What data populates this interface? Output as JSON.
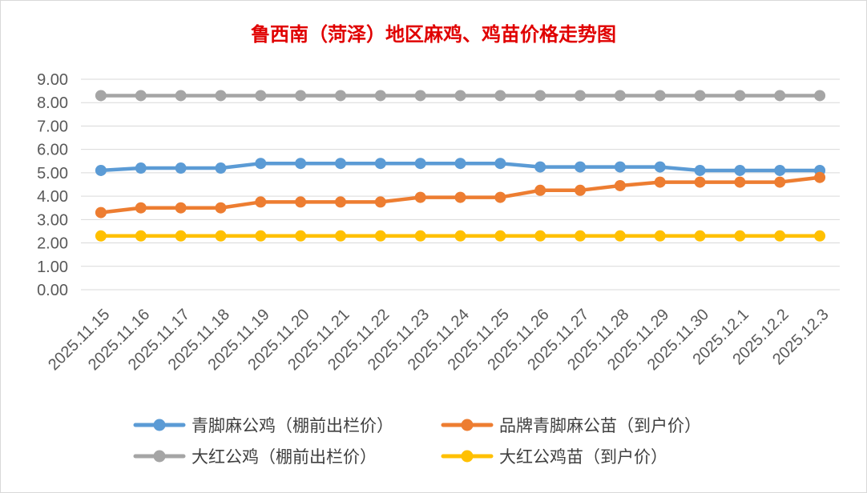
{
  "chart_data": {
    "type": "line",
    "title": "鲁西南（菏泽）地区麻鸡、鸡苗价格走势图",
    "xlabel": "",
    "ylabel": "",
    "ylim": [
      0,
      9
    ],
    "yticks": [
      "0.00",
      "1.00",
      "2.00",
      "3.00",
      "4.00",
      "5.00",
      "6.00",
      "7.00",
      "8.00",
      "9.00"
    ],
    "grid": true,
    "legend_position": "bottom",
    "x": [
      "2025.11.15",
      "2025.11.16",
      "2025.11.17",
      "2025.11.18",
      "2025.11.19",
      "2025.11.20",
      "2025.11.21",
      "2025.11.22",
      "2025.11.23",
      "2025.11.24",
      "2025.11.25",
      "2025.11.26",
      "2025.11.27",
      "2025.11.28",
      "2025.11.29",
      "2025.11.30",
      "2025.12.1",
      "2025.12.2",
      "2025.12.3"
    ],
    "series": [
      {
        "name": "青脚麻公鸡（棚前出栏价）",
        "color": "#5b9bd5",
        "values": [
          5.1,
          5.2,
          5.2,
          5.2,
          5.4,
          5.4,
          5.4,
          5.4,
          5.4,
          5.4,
          5.4,
          5.25,
          5.25,
          5.25,
          5.25,
          5.1,
          5.1,
          5.1,
          5.1
        ]
      },
      {
        "name": "品牌青脚麻公苗（到户价）",
        "color": "#ed7d31",
        "values": [
          3.3,
          3.5,
          3.5,
          3.5,
          3.75,
          3.75,
          3.75,
          3.75,
          3.95,
          3.95,
          3.95,
          4.25,
          4.25,
          4.45,
          4.6,
          4.6,
          4.6,
          4.6,
          4.8
        ]
      },
      {
        "name": "大红公鸡（棚前出栏价）",
        "color": "#a5a5a5",
        "values": [
          8.3,
          8.3,
          8.3,
          8.3,
          8.3,
          8.3,
          8.3,
          8.3,
          8.3,
          8.3,
          8.3,
          8.3,
          8.3,
          8.3,
          8.3,
          8.3,
          8.3,
          8.3,
          8.3
        ]
      },
      {
        "name": "大红公鸡苗（到户价）",
        "color": "#ffc000",
        "values": [
          2.3,
          2.3,
          2.3,
          2.3,
          2.3,
          2.3,
          2.3,
          2.3,
          2.3,
          2.3,
          2.3,
          2.3,
          2.3,
          2.3,
          2.3,
          2.3,
          2.3,
          2.3,
          2.3
        ]
      }
    ]
  }
}
